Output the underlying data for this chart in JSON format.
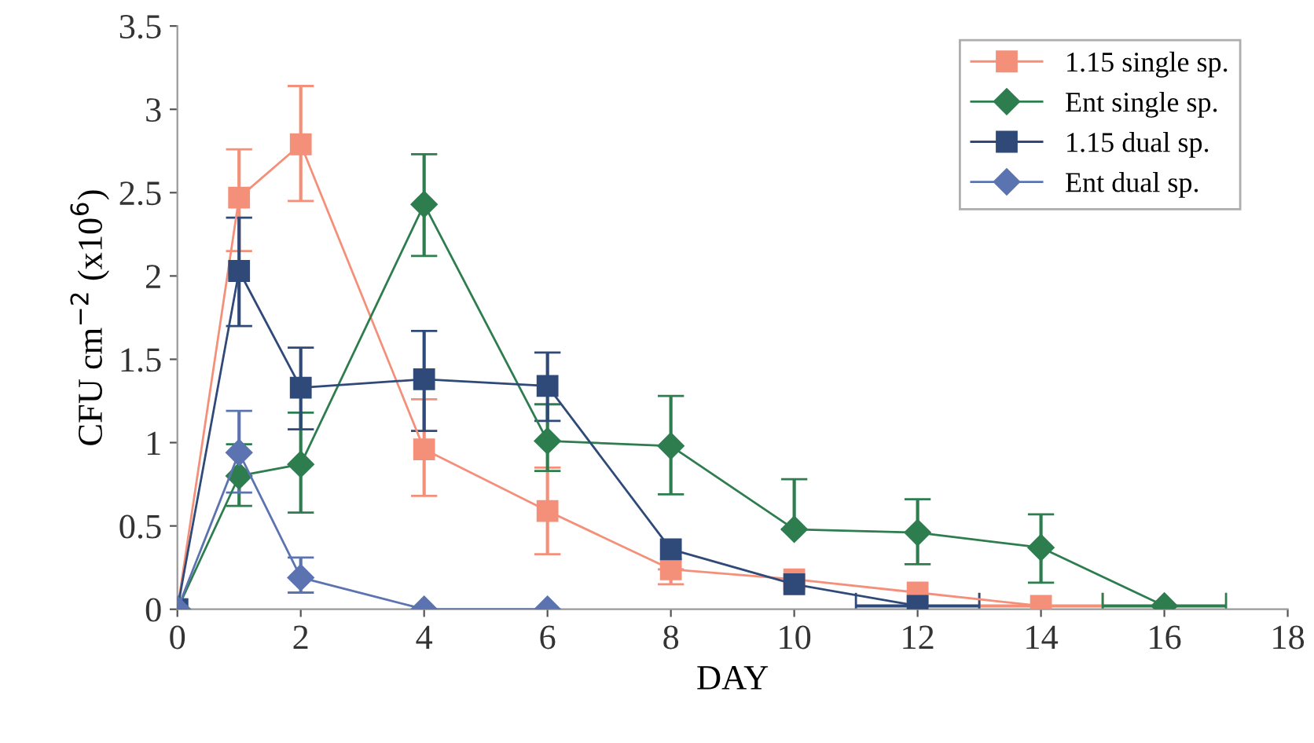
{
  "chart_data": {
    "type": "line",
    "xlabel": "DAY",
    "ylabel": "CFU cm$^{−2}$ (x10$^{6}$)",
    "xlim": [
      0,
      18
    ],
    "xticks": [
      0,
      2,
      4,
      6,
      8,
      10,
      12,
      14,
      16,
      18
    ],
    "ylim": [
      0,
      3.5
    ],
    "yticks": [
      0,
      0.5,
      1,
      1.5,
      2,
      2.5,
      3,
      3.5
    ],
    "grid": false,
    "legend": "top right",
    "line_style": "solid",
    "series": [
      {
        "name": "1.15 single sp.",
        "color": "#f4907a",
        "marker": "square",
        "x": [
          0,
          1,
          2,
          4,
          6,
          8,
          10,
          12,
          14
        ],
        "values": [
          0,
          2.47,
          2.79,
          0.96,
          0.59,
          0.24,
          0.18,
          0.1,
          0.02
        ],
        "errors": [
          null,
          [
            2.15,
            2.76
          ],
          [
            2.45,
            3.14
          ],
          [
            0.68,
            1.26
          ],
          [
            0.33,
            0.85
          ],
          [
            0.15,
            0.24
          ],
          null,
          null,
          null
        ],
        "xerrors": [
          null,
          null,
          null,
          null,
          null,
          null,
          null,
          null,
          1
        ]
      },
      {
        "name": "Ent single sp.",
        "color": "#2e7d4f",
        "marker": "diamond",
        "x": [
          0,
          1,
          2,
          4,
          6,
          8,
          10,
          12,
          14,
          16
        ],
        "values": [
          0,
          0.8,
          0.87,
          2.43,
          1.01,
          0.98,
          0.48,
          0.46,
          0.37,
          0.02
        ],
        "errors": [
          null,
          [
            0.62,
            0.99
          ],
          [
            0.58,
            1.18
          ],
          [
            2.12,
            2.73
          ],
          [
            0.83,
            1.23
          ],
          [
            0.69,
            1.28
          ],
          [
            0.48,
            0.78
          ],
          [
            0.27,
            0.66
          ],
          [
            0.16,
            0.57
          ],
          null
        ],
        "xerrors": [
          null,
          null,
          null,
          null,
          null,
          null,
          null,
          null,
          null,
          1
        ]
      },
      {
        "name": "1.15 dual sp.",
        "color": "#2f4a78",
        "marker": "square",
        "x": [
          0,
          1,
          2,
          4,
          6,
          8,
          10,
          12
        ],
        "values": [
          0,
          2.03,
          1.33,
          1.38,
          1.34,
          0.36,
          0.15,
          0.02
        ],
        "errors": [
          null,
          [
            1.7,
            2.35
          ],
          [
            1.08,
            1.57
          ],
          [
            1.07,
            1.67
          ],
          [
            1.13,
            1.54
          ],
          null,
          null,
          null
        ],
        "xerrors": [
          null,
          null,
          null,
          null,
          null,
          null,
          null,
          1
        ]
      },
      {
        "name": "Ent dual sp.",
        "color": "#5b73b0",
        "marker": "diamond",
        "x": [
          0,
          1,
          2,
          4,
          6
        ],
        "values": [
          0,
          0.94,
          0.19,
          0,
          0
        ],
        "errors": [
          null,
          [
            0.7,
            1.19
          ],
          [
            0.1,
            0.31
          ],
          null,
          null
        ]
      }
    ]
  }
}
